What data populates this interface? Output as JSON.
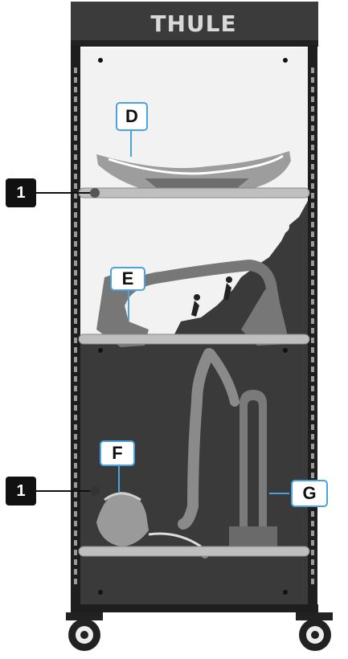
{
  "brand": {
    "logo_text": "THULE",
    "rack_brand_mark": "THULE"
  },
  "callouts": {
    "D": "D",
    "E": "E",
    "F": "F",
    "G": "G",
    "rail_top": "1",
    "rail_bottom": "1"
  },
  "colors": {
    "frame": "#2b2b2b",
    "panel_light": "#f2f2f2",
    "panel_dark": "#3a3a3a",
    "rail": "#bfbfbf",
    "accent": "#4aa3df",
    "label_dark": "#111111"
  },
  "icons": [
    "logo",
    "bike-rider-icon",
    "hiker-icon",
    "climber-icon",
    "caster-wheel-icon"
  ]
}
